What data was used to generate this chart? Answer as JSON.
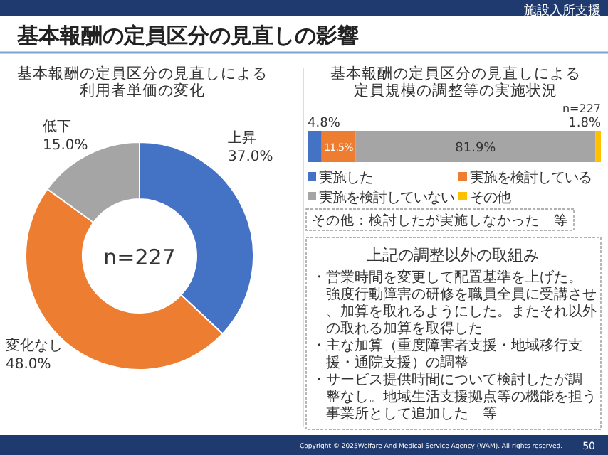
{
  "chart_data": [
    {
      "type": "other",
      "title": "基本報酬の定員区分の見直しの影響",
      "annotations": [
        "施設入所支援",
        "Copyright © 2025Welfare And Medical Service Agency (WAM). All rights reserved.",
        "50"
      ]
    },
    {
      "type": "donut",
      "title": "基本報酬の定員区分の見直しによる利用者単価の変化",
      "categories": [
        "上昇",
        "変化なし",
        "低下"
      ],
      "values": [
        37.0,
        48.0,
        15.0
      ],
      "colors": [
        "#4472c4",
        "#ed7d31",
        "#a5a5a5"
      ],
      "value_labels": [
        "37.0%",
        "48.0%",
        "15.0%"
      ],
      "annotations": [
        "n=227"
      ]
    },
    {
      "type": "bar",
      "orientation": "horizontal",
      "stacked": true,
      "title": "基本報酬の定員区分の見直しによる定員規模の調整等の実施状況",
      "categories": [
        null
      ],
      "legend": "bottom",
      "series": [
        {
          "name": "実施した",
          "color": "#4472c4",
          "values": [
            4.8
          ],
          "value_labels": [
            "4.8%"
          ]
        },
        {
          "name": "実施を検討している",
          "color": "#ed7d31",
          "values": [
            11.5
          ],
          "value_labels": [
            "11.5%"
          ]
        },
        {
          "name": "実施を検討していない",
          "color": "#a5a5a5",
          "values": [
            81.9
          ],
          "value_labels": [
            "81.9%"
          ]
        },
        {
          "name": "その他",
          "color": "#ffc000",
          "values": [
            1.8
          ],
          "value_labels": [
            "1.8%"
          ]
        }
      ],
      "annotations": [
        "n=227",
        "その他：検討したが実施しなかった　等"
      ]
    },
    {
      "type": "other",
      "title": "上記の調整以外の取組み",
      "annotations": [
        "・営業時間を変更して配置基準を上げた。強度行動障害の研修を職員全員に受講させ、加算を取れるようにした。またそれ以外の取れる加算を取得した",
        "・主な加算（重度障害者支援・地域移行支援・通院支援）の調整",
        "・サービス提供時間について検討したが調整なし。地域生活支援拠点等の機能を担う事業所として追加した　等"
      ]
    }
  ]
}
